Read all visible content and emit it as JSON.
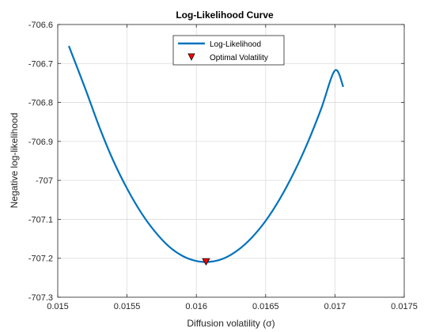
{
  "chart_data": {
    "type": "line",
    "title": "Log-Likelihood Curve",
    "xlabel": "Diffusion volatility (σ)",
    "ylabel": "Negative log-likelihood",
    "xlim": [
      0.015,
      0.0175
    ],
    "ylim": [
      -707.3,
      -706.6
    ],
    "xticks": [
      0.015,
      0.0155,
      0.016,
      0.0165,
      0.017,
      0.0175
    ],
    "xtick_labels": [
      "0.015",
      "0.0155",
      "0.016",
      "0.0165",
      "0.017",
      "0.0175"
    ],
    "yticks": [
      -707.3,
      -707.2,
      -707.1,
      -707,
      -706.9,
      -706.8,
      -706.7,
      -706.6
    ],
    "ytick_labels": [
      "-707.3",
      "-707.2",
      "-707.1",
      "-707",
      "-706.9",
      "-706.8",
      "-706.7",
      "-706.6"
    ],
    "grid": true,
    "legend_position": "top-center",
    "series": [
      {
        "name": "Log-Likelihood",
        "color": "#0072BD",
        "x": [
          0.01508,
          0.0152,
          0.0153,
          0.0154,
          0.0155,
          0.0156,
          0.0157,
          0.0158,
          0.0159,
          0.016,
          0.0161,
          0.0162,
          0.0163,
          0.0164,
          0.0165,
          0.0166,
          0.0167,
          0.0168,
          0.0169,
          0.017,
          0.01706
        ],
        "y": [
          -706.655,
          -706.766,
          -706.863,
          -706.949,
          -707.021,
          -707.082,
          -707.131,
          -707.169,
          -707.194,
          -707.207,
          -707.209,
          -707.2,
          -707.179,
          -707.147,
          -707.104,
          -707.049,
          -706.983,
          -706.906,
          -706.817,
          -706.718,
          -706.76
        ]
      }
    ],
    "markers": [
      {
        "name": "Optimal Volatility",
        "x": 0.01607,
        "y": -707.209,
        "shape": "triangle-down",
        "color": "#ff0000",
        "edge_color": "#000000"
      }
    ]
  }
}
